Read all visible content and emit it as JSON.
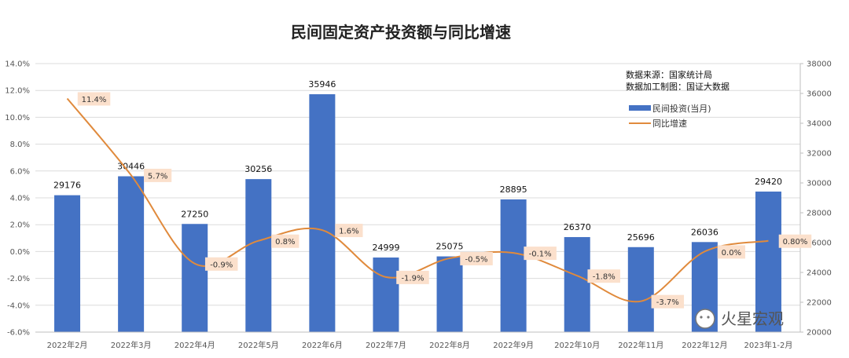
{
  "chart_data": {
    "type": "bar+line",
    "title": "民间固定资产投资额与同比增速",
    "categories": [
      "2022年2月",
      "2022年3月",
      "2022年4月",
      "2022年5月",
      "2022年6月",
      "2022年7月",
      "2022年8月",
      "2022年9月",
      "2022年10月",
      "2022年11月",
      "2022年12月",
      "2023年1-2月"
    ],
    "series": [
      {
        "name": "民间投资(当月)",
        "type": "bar",
        "axis": "right",
        "color": "#4472C4",
        "values": [
          29176,
          30446,
          27250,
          30256,
          35946,
          24999,
          25075,
          28895,
          26370,
          25696,
          26036,
          29420
        ],
        "labels": [
          "29176",
          "30446",
          "27250",
          "30256",
          "35946",
          "24999",
          "25075",
          "28895",
          "26370",
          "25696",
          "26036",
          "29420"
        ]
      },
      {
        "name": "同比增速",
        "type": "line",
        "axis": "left",
        "color": "#E08A3C",
        "values": [
          11.4,
          5.7,
          -0.9,
          0.8,
          1.6,
          -1.9,
          -0.5,
          -0.1,
          -1.8,
          -3.7,
          0.0,
          0.8
        ],
        "labels": [
          "11.4%",
          "5.7%",
          "-0.9%",
          "0.8%",
          "1.6%",
          "-1.9%",
          "-0.5%",
          "-0.1%",
          "-1.8%",
          "-3.7%",
          "0.0%",
          "0.80%"
        ]
      }
    ],
    "y_left": {
      "ylim": [
        -6.0,
        14.0
      ],
      "ticks": [
        "-6.0%",
        "-4.0%",
        "-2.0%",
        "0.0%",
        "2.0%",
        "4.0%",
        "6.0%",
        "8.0%",
        "10.0%",
        "12.0%",
        "14.0%"
      ]
    },
    "y_right": {
      "ylim": [
        20000,
        38000
      ],
      "ticks": [
        "20000",
        "22000",
        "24000",
        "26000",
        "28000",
        "30000",
        "32000",
        "34000",
        "36000",
        "38000"
      ]
    },
    "grid": true,
    "legend_position": "top-right",
    "source_lines": [
      "数据来源：国家统计局",
      "数据加工制图：国证大数据"
    ],
    "watermark": "火星宏观"
  }
}
